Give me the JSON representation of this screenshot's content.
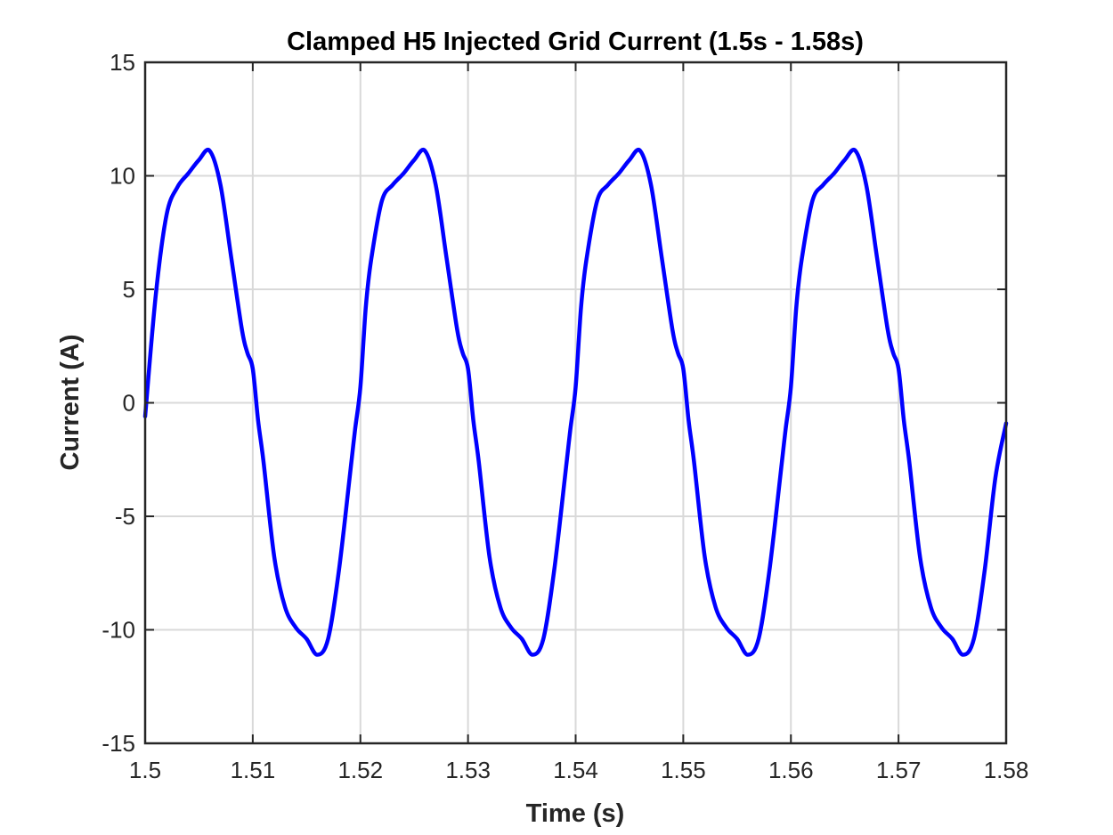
{
  "chart_data": {
    "type": "line",
    "title": "Clamped H5 Injected Grid Current (1.5s - 1.58s)",
    "xlabel": "Time (s)",
    "ylabel": "Current (A)",
    "xlim": [
      1.5,
      1.58
    ],
    "ylim": [
      -15,
      15
    ],
    "xticks": [
      1.5,
      1.51,
      1.52,
      1.53,
      1.54,
      1.55,
      1.56,
      1.57,
      1.58
    ],
    "xtick_labels": [
      "1.5",
      "1.51",
      "1.52",
      "1.53",
      "1.54",
      "1.55",
      "1.56",
      "1.57",
      "1.58"
    ],
    "yticks": [
      15,
      10,
      5,
      0,
      -5,
      -10,
      -15
    ],
    "ytick_labels": [
      "15",
      "10",
      "5",
      "0",
      "-5",
      "-10",
      "-15"
    ],
    "grid": true,
    "legend": "none",
    "series": [
      {
        "color": "#0000ff",
        "x": [
          1.5,
          1.501,
          1.502,
          1.503,
          1.504,
          1.505,
          1.506,
          1.507,
          1.508,
          1.509,
          1.5095,
          1.51,
          1.5105,
          1.511,
          1.512,
          1.513,
          1.514,
          1.515,
          1.516,
          1.517,
          1.518,
          1.519,
          1.5195,
          1.52,
          1.5205,
          1.521,
          1.522,
          1.523,
          1.524,
          1.525,
          1.526,
          1.527,
          1.528,
          1.529,
          1.5295,
          1.53,
          1.5305,
          1.531,
          1.532,
          1.533,
          1.534,
          1.535,
          1.536,
          1.537,
          1.538,
          1.539,
          1.5395,
          1.54,
          1.5405,
          1.541,
          1.542,
          1.543,
          1.544,
          1.545,
          1.546,
          1.547,
          1.548,
          1.549,
          1.5495,
          1.55,
          1.5505,
          1.551,
          1.552,
          1.553,
          1.554,
          1.555,
          1.556,
          1.557,
          1.558,
          1.559,
          1.5595,
          1.56,
          1.5605,
          1.561,
          1.562,
          1.563,
          1.564,
          1.565,
          1.566,
          1.567,
          1.568,
          1.569,
          1.5695,
          1.57,
          1.5705,
          1.571,
          1.572,
          1.573,
          1.574,
          1.575,
          1.576,
          1.577,
          1.578,
          1.579,
          1.58
        ],
        "y": [
          -0.6,
          4.8,
          8.3,
          9.5,
          10.1,
          10.7,
          11.1,
          9.6,
          6.4,
          3.2,
          2.2,
          1.5,
          -0.8,
          -2.6,
          -6.8,
          -9.0,
          -9.9,
          -10.4,
          -11.1,
          -10.4,
          -7.4,
          -3.3,
          -1.2,
          0.7,
          4.2,
          6.3,
          8.9,
          9.6,
          10.1,
          10.7,
          11.1,
          9.6,
          6.4,
          3.2,
          2.2,
          1.5,
          -0.8,
          -2.6,
          -6.8,
          -9.0,
          -9.9,
          -10.4,
          -11.1,
          -10.4,
          -7.4,
          -3.3,
          -1.2,
          0.7,
          4.2,
          6.3,
          8.9,
          9.6,
          10.1,
          10.7,
          11.1,
          9.6,
          6.4,
          3.2,
          2.2,
          1.5,
          -0.8,
          -2.6,
          -6.8,
          -9.0,
          -9.9,
          -10.4,
          -11.1,
          -10.4,
          -7.4,
          -3.3,
          -1.2,
          0.7,
          4.2,
          6.3,
          8.9,
          9.6,
          10.1,
          10.7,
          11.1,
          9.6,
          6.4,
          3.2,
          2.2,
          1.5,
          -0.8,
          -2.6,
          -6.8,
          -9.0,
          -9.9,
          -10.4,
          -11.1,
          -10.4,
          -7.4,
          -3.3,
          -0.9
        ]
      }
    ]
  }
}
